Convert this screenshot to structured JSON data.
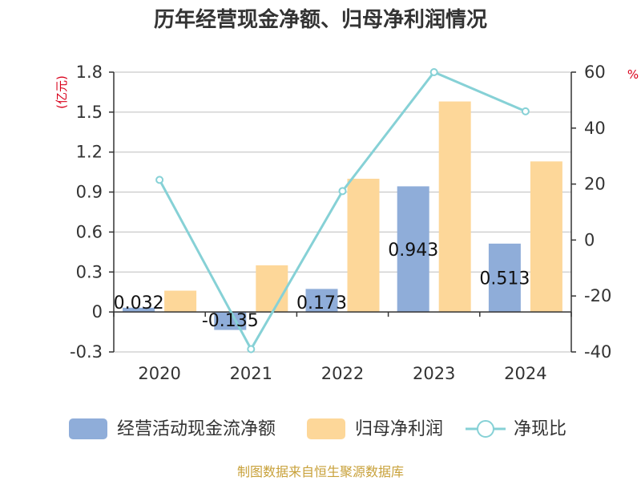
{
  "colors": {
    "cashflow": "#8fadd9",
    "profit": "#fdd799",
    "ratio": "#86d1d6",
    "unit": "#d9001b",
    "source": "#c8a13a"
  },
  "chart_data": {
    "type": "bar",
    "title": "历年经营现金净额、归母净利润情况",
    "categories": [
      "2020",
      "2021",
      "2022",
      "2023",
      "2024"
    ],
    "left_unit": "(亿元)",
    "right_unit": "%",
    "left_axis": {
      "min": -0.3,
      "max": 1.8,
      "ticks": [
        "1.8",
        "1.5",
        "1.2",
        "0.9",
        "0.6",
        "0.3",
        "0",
        "-0.3"
      ]
    },
    "right_axis": {
      "min": -40,
      "max": 60,
      "ticks": [
        "60",
        "40",
        "20",
        "0",
        "-20",
        "-40"
      ]
    },
    "series": [
      {
        "name": "经营活动现金流净额",
        "type": "bar",
        "axis": "left",
        "values": [
          0.032,
          -0.135,
          0.173,
          0.943,
          0.513
        ],
        "labels": [
          "0.032",
          "-0.135",
          "0.173",
          "0.943",
          "0.513"
        ]
      },
      {
        "name": "归母净利润",
        "type": "bar",
        "axis": "left",
        "values": [
          0.16,
          0.35,
          1.0,
          1.58,
          1.13
        ]
      },
      {
        "name": "净现比",
        "type": "line",
        "axis": "right",
        "values": [
          21.5,
          -39,
          17.5,
          60,
          46
        ]
      }
    ],
    "legend": [
      "经营活动现金流净额",
      "归母净利润",
      "净现比"
    ],
    "source": "制图数据来自恒生聚源数据库"
  }
}
